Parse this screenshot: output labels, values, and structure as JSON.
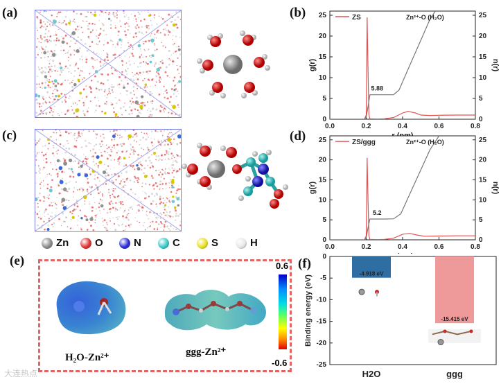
{
  "panels": {
    "a": {
      "label": "(a)"
    },
    "b": {
      "label": "(b)",
      "legend": "ZS",
      "annotation": "Zn²⁺-O (H₂O)",
      "coord_value": "5.88",
      "ylabel_left": "g(r)",
      "ylabel_right": "n(r)",
      "xlabel": "r (nm)"
    },
    "c": {
      "label": "(c)"
    },
    "d": {
      "label": "(d)",
      "legend": "ZS/ggg",
      "annotation": "Zn²⁺-O (H₂O)",
      "coord_value": "5.2",
      "ylabel_left": "g(r)",
      "ylabel_right": "n(r)",
      "xlabel": "r (nm)"
    },
    "e": {
      "label": "(e)",
      "scale_max": "0.6",
      "scale_min": "-0.6",
      "caption_left": "H₂O-Zn²⁺",
      "caption_right": "ggg-Zn²⁺"
    },
    "f": {
      "label": "(f)",
      "ylabel": "Binding energy (eV)"
    }
  },
  "legend_atoms": [
    {
      "symbol": "Zn",
      "color": "#8a8a8a"
    },
    {
      "symbol": "O",
      "color": "#e03030"
    },
    {
      "symbol": "N",
      "color": "#2a2ad8"
    },
    {
      "symbol": "C",
      "color": "#38c8c8"
    },
    {
      "symbol": "S",
      "color": "#e8e020"
    },
    {
      "symbol": "H",
      "color": "#e8e8e8"
    }
  ],
  "watermark": "大连热点",
  "chart_data": [
    {
      "id": "b",
      "type": "line",
      "title": "",
      "xlabel": "r (nm)",
      "ylabel": "g(r)",
      "ylabel_right": "n(r)",
      "xlim": [
        0.0,
        0.8
      ],
      "ylim": [
        0,
        26
      ],
      "xticks": [
        "0.0",
        "0.2",
        "0.4",
        "0.6",
        "0.8"
      ],
      "yticks": [
        "0",
        "5",
        "10",
        "15",
        "20",
        "25"
      ],
      "series": [
        {
          "name": "ZS",
          "axis": "left",
          "color": "#e25050",
          "x": [
            0.0,
            0.19,
            0.2,
            0.205,
            0.21,
            0.215,
            0.22,
            0.26,
            0.3,
            0.35,
            0.4,
            0.43,
            0.47,
            0.5,
            0.55,
            0.6,
            0.7,
            0.8
          ],
          "y": [
            0,
            0,
            1,
            24.5,
            12,
            1,
            0.1,
            0.05,
            0.1,
            0.4,
            1.5,
            1.9,
            1.5,
            1.0,
            0.9,
            0.95,
            1.0,
            1.0
          ]
        },
        {
          "name": "n(r)",
          "axis": "right",
          "color": "#777777",
          "x": [
            0.0,
            0.19,
            0.2,
            0.21,
            0.22,
            0.25,
            0.3,
            0.35,
            0.38,
            0.45,
            0.5,
            0.55,
            0.58
          ],
          "y": [
            0,
            0,
            0.5,
            3,
            5.88,
            5.88,
            5.88,
            5.9,
            7,
            14,
            19,
            24,
            26
          ]
        }
      ]
    },
    {
      "id": "d",
      "type": "line",
      "title": "",
      "xlabel": "r (nm)",
      "ylabel": "g(r)",
      "ylabel_right": "n(r)",
      "xlim": [
        0.0,
        0.8
      ],
      "ylim": [
        0,
        26
      ],
      "xticks": [
        "0.0",
        "0.2",
        "0.4",
        "0.6",
        "0.8"
      ],
      "yticks": [
        "0",
        "5",
        "10",
        "15",
        "20",
        "25"
      ],
      "series": [
        {
          "name": "ZS/ggg",
          "axis": "left",
          "color": "#e25050",
          "x": [
            0.0,
            0.19,
            0.2,
            0.205,
            0.21,
            0.215,
            0.22,
            0.26,
            0.3,
            0.35,
            0.4,
            0.44,
            0.48,
            0.52,
            0.6,
            0.7,
            0.8
          ],
          "y": [
            0,
            0,
            1,
            20.5,
            10,
            1,
            0.1,
            0.05,
            0.1,
            0.4,
            1.4,
            1.6,
            1.2,
            0.9,
            0.95,
            1.0,
            1.0
          ]
        },
        {
          "name": "n(r)",
          "axis": "right",
          "color": "#777777",
          "x": [
            0.0,
            0.19,
            0.2,
            0.21,
            0.22,
            0.25,
            0.3,
            0.35,
            0.39,
            0.45,
            0.5,
            0.55,
            0.6
          ],
          "y": [
            0,
            0,
            0.5,
            3,
            5.2,
            5.2,
            5.2,
            5.25,
            6.5,
            12.5,
            17.5,
            22.5,
            26
          ]
        }
      ]
    },
    {
      "id": "f",
      "type": "bar",
      "title": "",
      "xlabel": "",
      "ylabel": "Binding energy (eV)",
      "ylim": [
        -25,
        0
      ],
      "yticks": [
        "0",
        "-5",
        "-10",
        "-15",
        "-20",
        "-25"
      ],
      "categories": [
        "H2O",
        "ggg"
      ],
      "values": [
        -4.918,
        -15.415
      ],
      "value_labels": [
        "-4.918 eV",
        "-15.415  eV"
      ],
      "colors": [
        "#2f6ea3",
        "#ef9a9a"
      ]
    }
  ]
}
